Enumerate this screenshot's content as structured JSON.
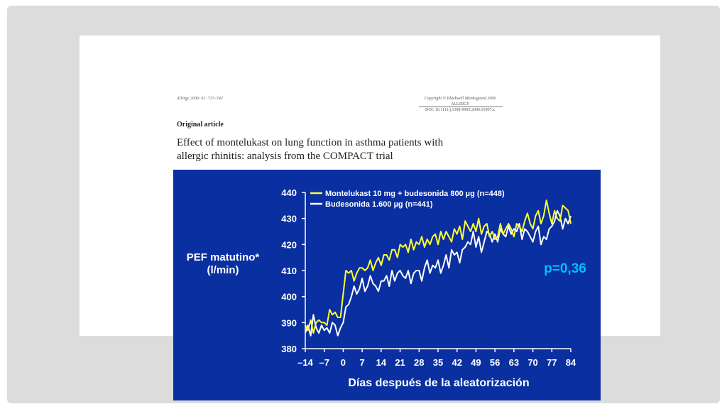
{
  "slide": {
    "journal_ref": "Allergy 2006: 61: 737–742",
    "copyright": "Copyright © Blackwell Munksgaard 2006",
    "journal_name": "ALLERGY",
    "doi": "DOI: 10.1111/j.1398-9995.2006.01007.x",
    "article_type": "Original article",
    "title_line_1": "Effect of montelukast on lung function in asthma patients with",
    "title_line_2": "allergic rhinitis: analysis from the COMPACT trial"
  },
  "colors": {
    "panel_background": "#0a2fa0",
    "series_montelukast": "#ffff33",
    "series_budesonida": "#ffffff",
    "p_value": "#00bfff"
  },
  "chart_data": {
    "type": "line",
    "ylabel_lines": [
      "PEF matutino*",
      "(l/min)"
    ],
    "xlabel": "Días después de la aleatorización",
    "ylim": [
      380,
      440
    ],
    "yticks": [
      380,
      390,
      400,
      410,
      420,
      430,
      440
    ],
    "xlim": [
      -14,
      84
    ],
    "xticks": [
      -14,
      -7,
      0,
      7,
      14,
      21,
      28,
      35,
      42,
      49,
      56,
      63,
      70,
      77,
      84
    ],
    "xtick_labels": [
      "–14",
      "–7",
      "0",
      "7",
      "14",
      "21",
      "28",
      "35",
      "42",
      "49",
      "56",
      "63",
      "70",
      "77",
      "84"
    ],
    "annotation": "p=0,36",
    "legend_position": "top-left",
    "series": [
      {
        "name": "Montelukast 10 mg + budesonida 800 µg (n=448)",
        "color": "#ffff33",
        "x": [
          -14,
          -13,
          -12,
          -11,
          -10,
          -9,
          -8,
          -7,
          -6,
          -5,
          -4,
          -3,
          -2,
          -1,
          0,
          1,
          2,
          3,
          4,
          5,
          6,
          7,
          8,
          9,
          10,
          11,
          12,
          13,
          14,
          15,
          16,
          17,
          18,
          19,
          20,
          21,
          22,
          23,
          24,
          25,
          26,
          27,
          28,
          29,
          30,
          31,
          32,
          33,
          34,
          35,
          36,
          37,
          38,
          39,
          40,
          41,
          42,
          43,
          44,
          45,
          46,
          47,
          48,
          49,
          50,
          51,
          52,
          53,
          54,
          55,
          56,
          57,
          58,
          59,
          60,
          61,
          62,
          63,
          64,
          65,
          66,
          67,
          68,
          69,
          70,
          71,
          72,
          73,
          74,
          75,
          76,
          77,
          78,
          79,
          80,
          81,
          82,
          83,
          84
        ],
        "y": [
          389,
          387,
          391,
          386,
          390,
          391,
          390,
          390,
          389,
          395,
          393,
          394,
          392,
          392,
          401,
          410,
          409,
          410,
          406,
          409,
          411,
          411,
          410,
          411,
          414,
          410,
          413,
          415,
          412,
          416,
          416,
          414,
          418,
          418,
          415,
          420,
          419,
          420,
          417,
          422,
          418,
          421,
          420,
          423,
          419,
          422,
          420,
          423,
          424,
          420,
          425,
          422,
          425,
          423,
          421,
          426,
          424,
          427,
          422,
          429,
          427,
          425,
          428,
          425,
          430,
          424,
          427,
          428,
          423,
          425,
          422,
          423,
          428,
          424,
          426,
          428,
          426,
          423,
          428,
          427,
          425,
          429,
          432,
          428,
          426,
          431,
          433,
          428,
          431,
          437,
          432,
          428,
          433,
          430,
          429,
          435,
          434,
          433,
          428
        ]
      },
      {
        "name": "Budesonida 1.600 µg (n=441)",
        "color": "#ffffff",
        "x": [
          -14,
          -13,
          -12,
          -11,
          -10,
          -9,
          -8,
          -7,
          -6,
          -5,
          -4,
          -3,
          -2,
          -1,
          0,
          1,
          2,
          3,
          4,
          5,
          6,
          7,
          8,
          9,
          10,
          11,
          12,
          13,
          14,
          15,
          16,
          17,
          18,
          19,
          20,
          21,
          22,
          23,
          24,
          25,
          26,
          27,
          28,
          29,
          30,
          31,
          32,
          33,
          34,
          35,
          36,
          37,
          38,
          39,
          40,
          41,
          42,
          43,
          44,
          45,
          46,
          47,
          48,
          49,
          50,
          51,
          52,
          53,
          54,
          55,
          56,
          57,
          58,
          59,
          60,
          61,
          62,
          63,
          64,
          65,
          66,
          67,
          68,
          69,
          70,
          71,
          72,
          73,
          74,
          75,
          76,
          77,
          78,
          79,
          80,
          81,
          82,
          83,
          84
        ],
        "y": [
          386,
          389,
          385,
          393,
          388,
          386,
          389,
          387,
          388,
          386,
          390,
          389,
          385,
          388,
          390,
          396,
          397,
          400,
          404,
          401,
          403,
          407,
          402,
          404,
          408,
          405,
          404,
          402,
          406,
          406,
          408,
          404,
          410,
          406,
          409,
          410,
          408,
          407,
          410,
          405,
          409,
          410,
          410,
          406,
          411,
          414,
          409,
          412,
          411,
          414,
          409,
          412,
          416,
          411,
          418,
          416,
          417,
          413,
          418,
          419,
          421,
          420,
          425,
          419,
          423,
          417,
          421,
          425,
          424,
          421,
          424,
          421,
          426,
          424,
          423,
          427,
          424,
          426,
          425,
          428,
          422,
          426,
          425,
          423,
          421,
          425,
          427,
          420,
          423,
          422,
          426,
          427,
          429,
          433,
          431,
          426,
          430,
          428,
          431
        ]
      }
    ]
  }
}
